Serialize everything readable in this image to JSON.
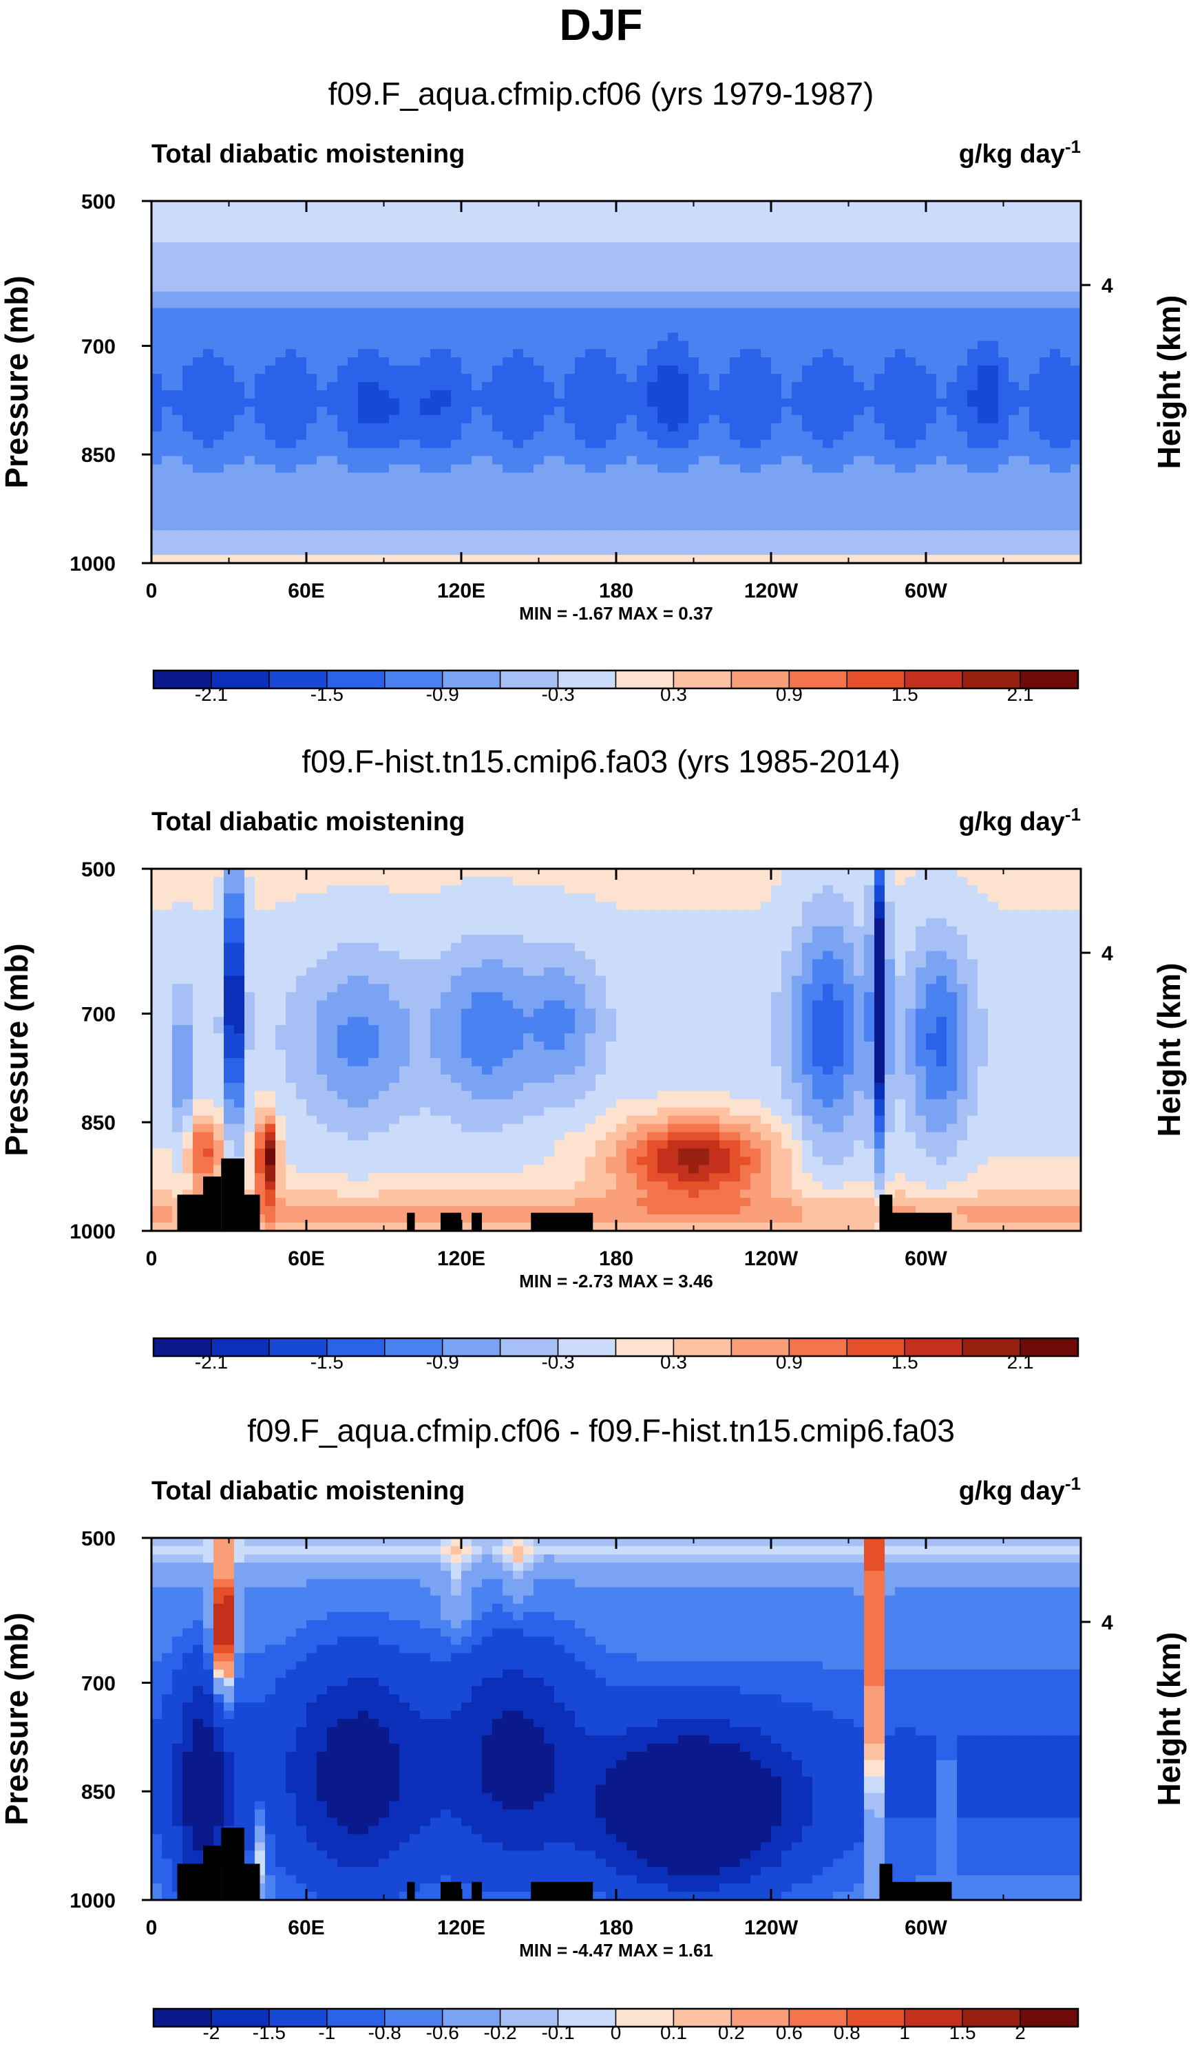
{
  "figure_title": "DJF",
  "chart_data": [
    {
      "type": "heatmap",
      "title": "f09.F_aqua.cfmip.cf06 (yrs 1979-1987)",
      "left_label": "Total diabatic moistening",
      "units_label": "g/kg day",
      "units_exp": "-1",
      "ylabel": "Pressure (mb)",
      "ylabel_right": "Height (km)",
      "x_ticks": [
        "0",
        "60E",
        "120E",
        "180",
        "120W",
        "60W"
      ],
      "y_ticks": [
        "500",
        "700",
        "850",
        "1000"
      ],
      "y_right_ticks": [
        "4"
      ],
      "stats_text": "MIN = -1.67  MAX =  0.37",
      "colorbar_labels": [
        "-2.1",
        "-1.5",
        "-0.9",
        "-0.3",
        "0.3",
        "0.9",
        "1.5",
        "2.1"
      ],
      "colorbar_colors": [
        "#0a1a8c",
        "#0b2fb8",
        "#1748d6",
        "#2a63ea",
        "#4a82f2",
        "#7ba3f4",
        "#a6c0f6",
        "#cbdcfa",
        "#fde3cf",
        "#fcc2a2",
        "#f99e78",
        "#f4744c",
        "#e5502a",
        "#c3311c",
        "#982010",
        "#6e0a08"
      ],
      "xlim": [
        0,
        360
      ],
      "ylim": [
        1000,
        500
      ],
      "field": "aqua"
    },
    {
      "type": "heatmap",
      "title": "f09.F-hist.tn15.cmip6.fa03 (yrs 1985-2014)",
      "left_label": "Total diabatic moistening",
      "units_label": "g/kg day",
      "units_exp": "-1",
      "ylabel": "Pressure (mb)",
      "ylabel_right": "Height (km)",
      "x_ticks": [
        "0",
        "60E",
        "120E",
        "180",
        "120W",
        "60W"
      ],
      "y_ticks": [
        "500",
        "700",
        "850",
        "1000"
      ],
      "y_right_ticks": [
        "4"
      ],
      "stats_text": "MIN = -2.73  MAX =  3.46",
      "colorbar_labels": [
        "-2.1",
        "-1.5",
        "-0.9",
        "-0.3",
        "0.3",
        "0.9",
        "1.5",
        "2.1"
      ],
      "colorbar_colors": [
        "#0a1a8c",
        "#0b2fb8",
        "#1748d6",
        "#2a63ea",
        "#4a82f2",
        "#7ba3f4",
        "#a6c0f6",
        "#cbdcfa",
        "#fde3cf",
        "#fcc2a2",
        "#f99e78",
        "#f4744c",
        "#e5502a",
        "#c3311c",
        "#982010",
        "#6e0a08"
      ],
      "xlim": [
        0,
        360
      ],
      "ylim": [
        1000,
        500
      ],
      "field": "hist"
    },
    {
      "type": "heatmap",
      "title": "f09.F_aqua.cfmip.cf06 - f09.F-hist.tn15.cmip6.fa03",
      "left_label": "Total diabatic moistening",
      "units_label": "g/kg day",
      "units_exp": "-1",
      "ylabel": "Pressure (mb)",
      "ylabel_right": "Height (km)",
      "x_ticks": [
        "0",
        "60E",
        "120E",
        "180",
        "120W",
        "60W"
      ],
      "y_ticks": [
        "500",
        "700",
        "850",
        "1000"
      ],
      "y_right_ticks": [
        "4"
      ],
      "stats_text": "MIN = -4.47  MAX =  1.61",
      "colorbar_labels": [
        "-2",
        "-1.5",
        "-1",
        "-0.8",
        "-0.6",
        "-0.2",
        "-0.1",
        "0",
        "0.1",
        "0.2",
        "0.6",
        "0.8",
        "1",
        "1.5",
        "2"
      ],
      "colorbar_colors": [
        "#0a1a8c",
        "#0b2fb8",
        "#1748d6",
        "#2a63ea",
        "#4a82f2",
        "#7ba3f4",
        "#a6c0f6",
        "#cbdcfa",
        "#fde3cf",
        "#fcc2a2",
        "#f99e78",
        "#f4744c",
        "#e5502a",
        "#c3311c",
        "#982010",
        "#6e0a08"
      ],
      "xlim": [
        0,
        360
      ],
      "ylim": [
        1000,
        500
      ],
      "field": "diff"
    }
  ]
}
